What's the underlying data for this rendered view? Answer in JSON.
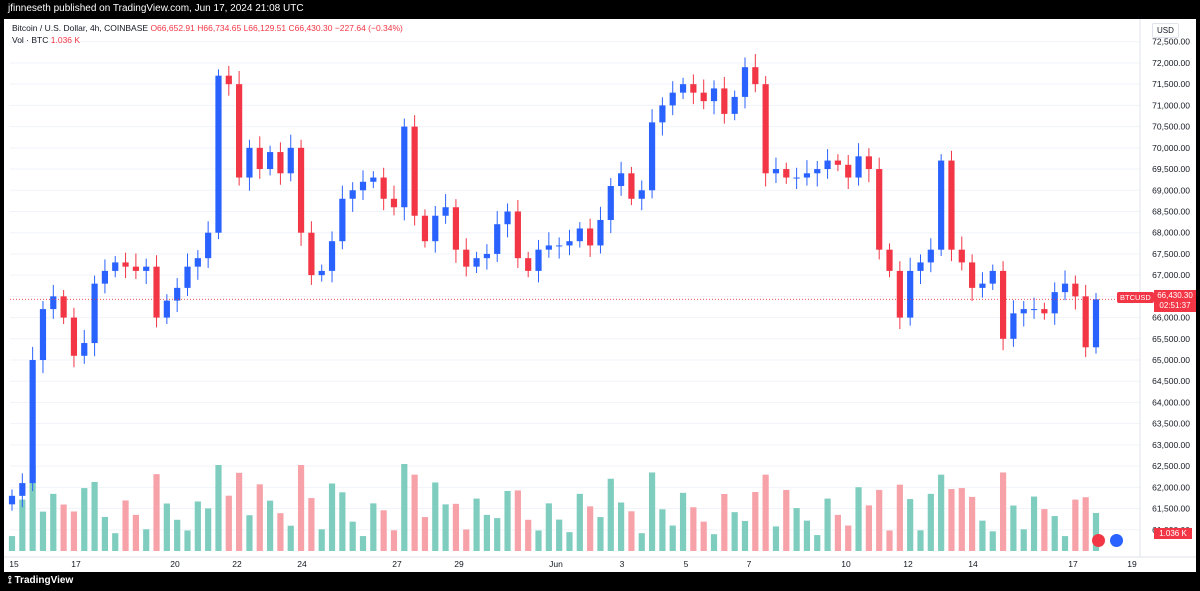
{
  "header": {
    "published": "jfinneseth published on TradingView.com, Jun 17, 2024 21:08 UTC"
  },
  "legend": {
    "symbol": "Bitcoin / U.S. Dollar, 4h, COINBASE",
    "open": "O66,652.91",
    "high": "H66,734.65",
    "low": "L66,129.51",
    "close": "C66,430.30",
    "change": "−227.64 (−0.34%)",
    "volume_label": "Vol · BTC",
    "volume_value": "1.036 K"
  },
  "axis": {
    "currency": "USD"
  },
  "price_tag": {
    "symbol": "BTCUSD",
    "price": "66,430.30",
    "countdown": "02:51:37"
  },
  "volume_tag": "1.036 K",
  "footer": {
    "brand": "TradingView"
  },
  "colors": {
    "up": "#2962ff",
    "down": "#f23645",
    "vol_up": "#7fcdbf",
    "vol_down": "#f7a1a8"
  },
  "chart_data": {
    "type": "candlestick",
    "y_range": [
      60500,
      72800
    ],
    "y_ticks": [
      61000,
      61500,
      62000,
      62500,
      63000,
      63500,
      64000,
      64500,
      65000,
      65500,
      66000,
      66500,
      67000,
      67500,
      68000,
      68500,
      69000,
      69500,
      70000,
      70500,
      71000,
      71500,
      72000,
      72500
    ],
    "x_labels": [
      "15",
      "17",
      "20",
      "22",
      "24",
      "27",
      "29",
      "Jun",
      "3",
      "5",
      "7",
      "10",
      "12",
      "14",
      "17",
      "19"
    ],
    "last_price": 66430.3,
    "closes": [
      61800,
      62100,
      65000,
      66200,
      66500,
      66000,
      65100,
      65400,
      66800,
      67100,
      67300,
      67200,
      67100,
      67200,
      66000,
      66400,
      66700,
      67200,
      67400,
      68000,
      71700,
      71500,
      69300,
      70000,
      69500,
      69900,
      69400,
      70000,
      68000,
      67000,
      67100,
      67800,
      68800,
      69000,
      69200,
      69300,
      68800,
      68600,
      70500,
      68400,
      67800,
      68400,
      68600,
      67600,
      67200,
      67400,
      67500,
      68200,
      68500,
      67400,
      67100,
      67600,
      67700,
      67700,
      67800,
      68100,
      67700,
      68300,
      69100,
      69400,
      68800,
      69000,
      70600,
      71000,
      71300,
      71500,
      71300,
      71100,
      71400,
      70800,
      71200,
      71900,
      71500,
      69400,
      69500,
      69300,
      69300,
      69400,
      69500,
      69700,
      69600,
      69300,
      69800,
      69500,
      67600,
      67100,
      66000,
      67100,
      67300,
      67600,
      69700,
      67600,
      67300,
      66700,
      66800,
      67100,
      65500,
      66100,
      66200,
      66200,
      66100,
      66600,
      66800,
      66500,
      65300,
      66430
    ],
    "volume_range": [
      0,
      15000
    ]
  }
}
